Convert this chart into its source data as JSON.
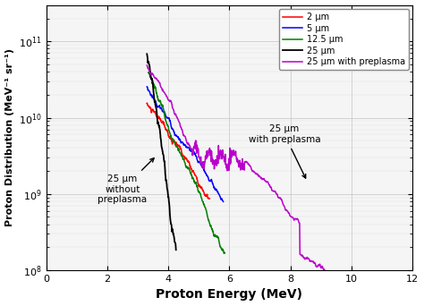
{
  "xlabel": "Proton Energy (MeV)",
  "ylabel": "Proton Distribution (MeV⁻¹ sr⁻¹)",
  "xlim": [
    0,
    12
  ],
  "ylim_log": [
    100000000.0,
    300000000000.0
  ],
  "xticks": [
    0,
    2,
    4,
    6,
    8,
    10,
    12
  ],
  "legend_labels": [
    "2 μm",
    "5 μm",
    "12.5 μm",
    "25 μm",
    "25 μm with preplasma"
  ],
  "colors": [
    "red",
    "blue",
    "green",
    "black",
    "#bb00cc"
  ],
  "annotation1_text": "25 μm\nwithout\npreplasma",
  "annotation2_text": "25 μm\nwith preplasma",
  "background_color": "#f5f5f5"
}
